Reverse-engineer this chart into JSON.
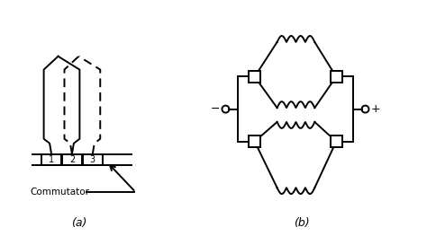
{
  "bg_color": "#ffffff",
  "line_color": "#000000",
  "fig_width": 4.74,
  "fig_height": 2.63,
  "label_a": "(a)",
  "label_b": "(b)",
  "commutator_label": "Commutator",
  "segment_labels": [
    "1",
    "2",
    "3"
  ],
  "minus_label": "−",
  "plus_label": "+"
}
